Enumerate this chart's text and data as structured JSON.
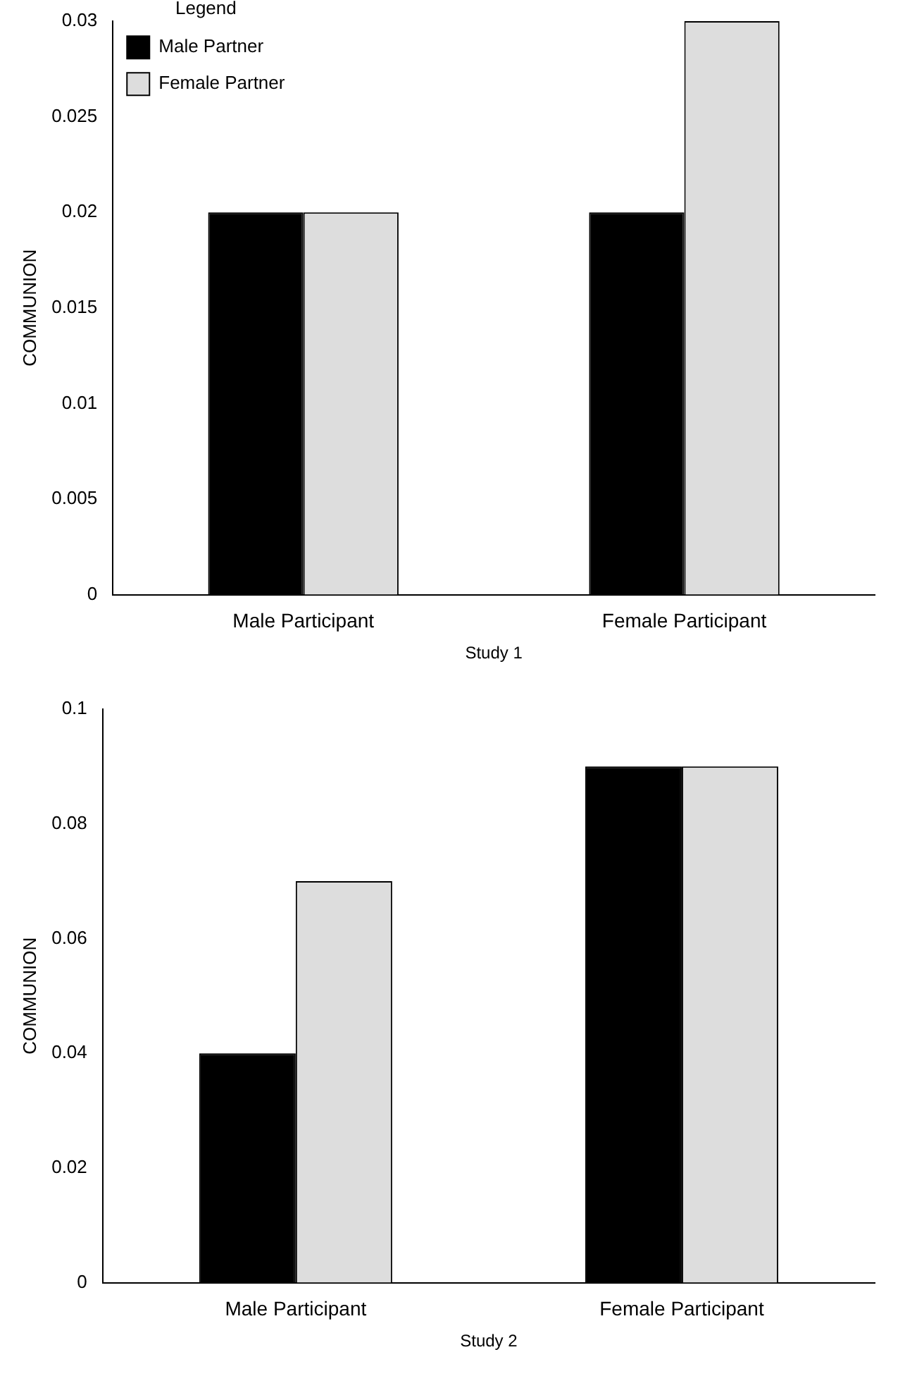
{
  "chart_data": [
    {
      "type": "bar",
      "xlabel": "Study 1",
      "ylabel": "COMMUNION",
      "legend_title": "Legend",
      "categories": [
        "Male Participant",
        "Female Participant"
      ],
      "series": [
        {
          "name": "Male Partner",
          "color": "#000000",
          "values": [
            0.02,
            0.02
          ]
        },
        {
          "name": "Female Partner",
          "color": "#dddddd",
          "values": [
            0.02,
            0.03
          ]
        }
      ],
      "ylim": [
        0,
        0.03
      ],
      "yticks": [
        0,
        0.005,
        0.01,
        0.015,
        0.02,
        0.025,
        0.03
      ],
      "grid": false,
      "legend": "top left"
    },
    {
      "type": "bar",
      "xlabel": "Study 2",
      "ylabel": "COMMUNION",
      "categories": [
        "Male Participant",
        "Female Participant"
      ],
      "series": [
        {
          "color": "#000000",
          "values": [
            0.04,
            0.09
          ]
        },
        {
          "color": "#dddddd",
          "values": [
            0.07,
            0.09
          ]
        }
      ],
      "ylim": [
        0,
        0.1
      ],
      "yticks": [
        0,
        0.02,
        0.04,
        0.06,
        0.08,
        0.1
      ],
      "grid": false,
      "legend": false
    }
  ]
}
